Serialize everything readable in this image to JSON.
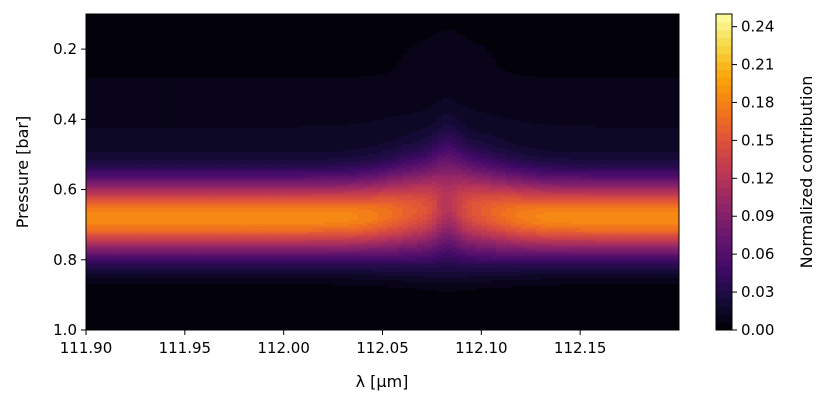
{
  "chart_data": {
    "type": "heatmap",
    "title": "",
    "xlabel": "λ [μm]",
    "ylabel": "Pressure [bar]",
    "xlim": [
      111.9,
      112.2
    ],
    "ylim": [
      1.0,
      0.1
    ],
    "y_axis_inverted": true,
    "colormap": "inferno",
    "x_ticks": [
      111.9,
      111.95,
      112.0,
      112.05,
      112.1,
      112.15
    ],
    "x_tick_labels": [
      "111.90",
      "111.95",
      "112.00",
      "112.05",
      "112.10",
      "112.15"
    ],
    "y_ticks": [
      0.2,
      0.4,
      0.6,
      0.8,
      1.0
    ],
    "y_tick_labels": [
      "0.2",
      "0.4",
      "0.6",
      "0.8",
      "1.0"
    ],
    "colorbar": {
      "label": "Normalized contribution",
      "range": [
        0.0,
        0.25
      ],
      "ticks": [
        0.0,
        0.03,
        0.06,
        0.09,
        0.12,
        0.15,
        0.18,
        0.21,
        0.24
      ],
      "tick_labels": [
        "0.00",
        "0.03",
        "0.06",
        "0.09",
        "0.12",
        "0.15",
        "0.18",
        "0.21",
        "0.24"
      ]
    },
    "feature": {
      "peak_pressure": 0.68,
      "peak_value": 0.185,
      "band_width_pressure": 0.075,
      "line_center_wavelength": 112.083,
      "line_core_peak_pressure": 0.64,
      "line_core_peak_value": 0.12
    },
    "grid": false,
    "legend": "none"
  },
  "colors": {
    "background": "#ffffff",
    "frame": "#000000"
  }
}
